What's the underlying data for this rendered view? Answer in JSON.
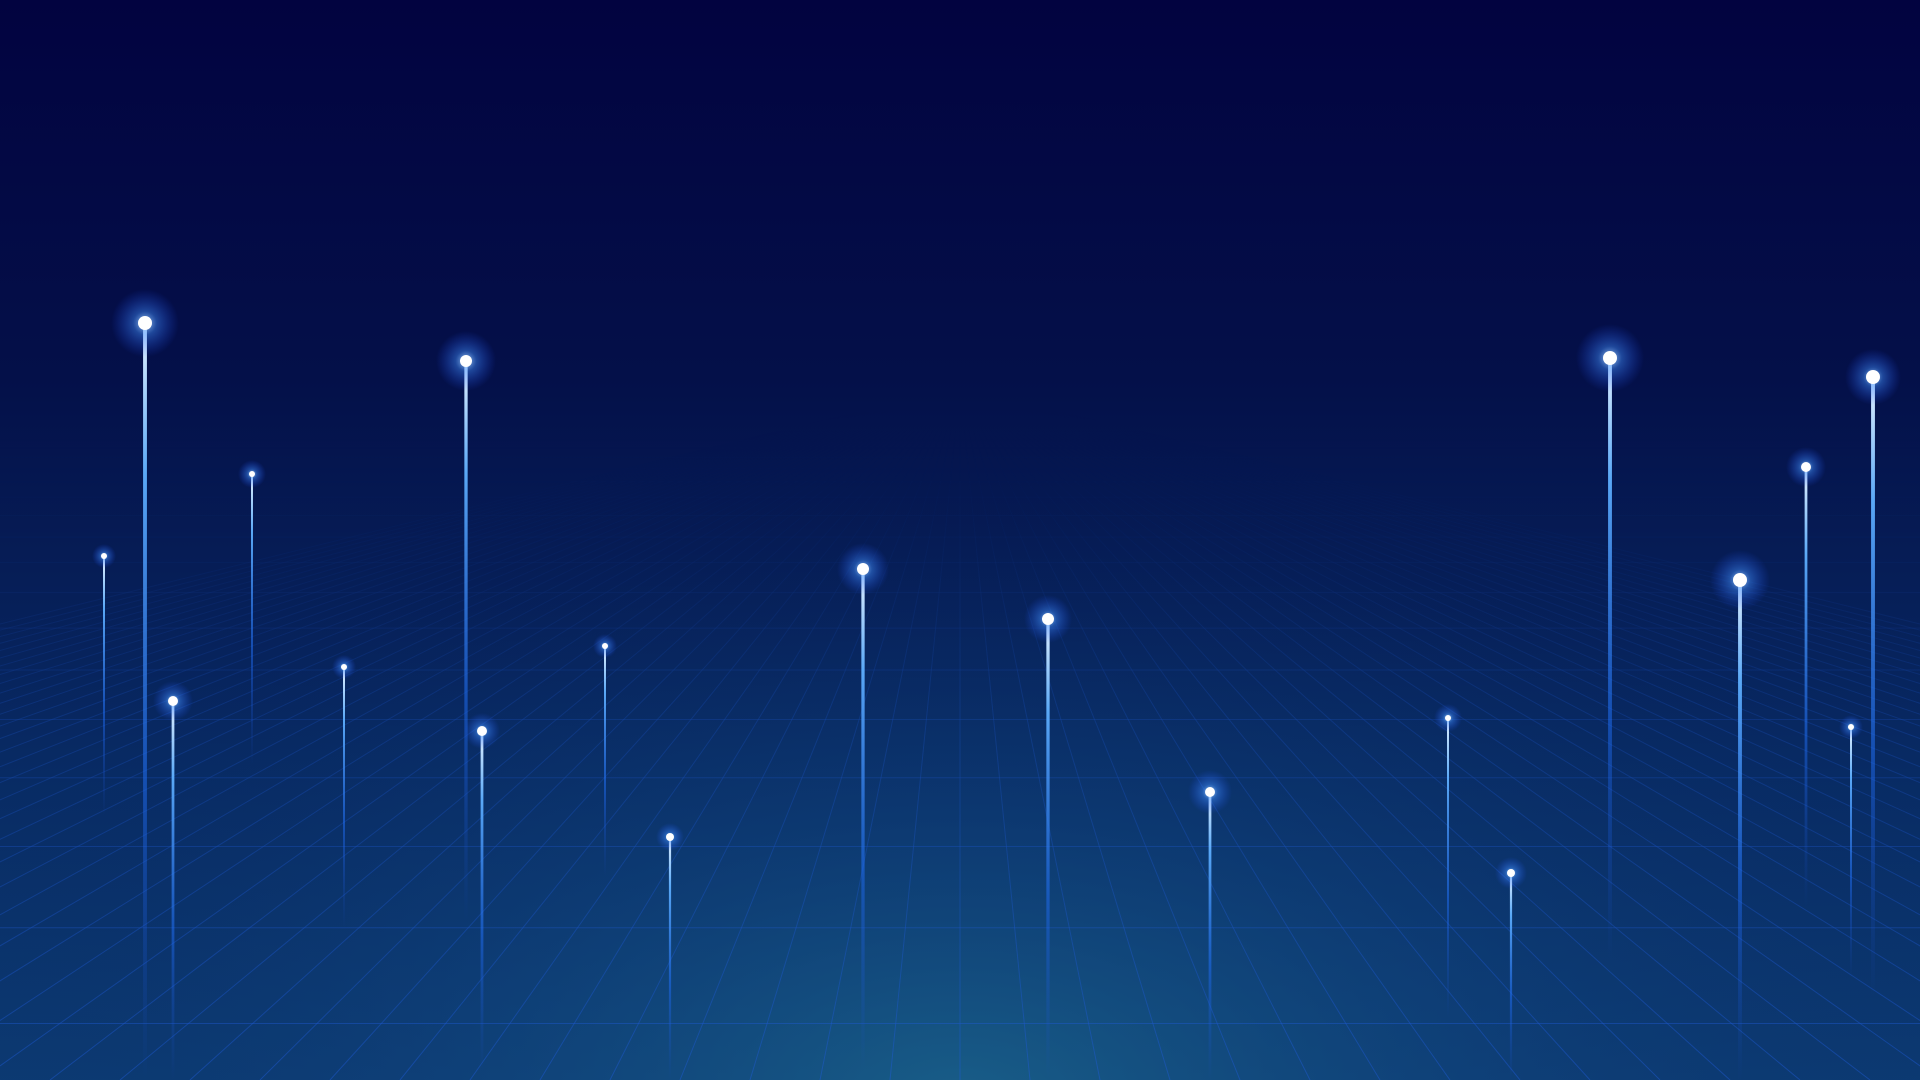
{
  "colors": {
    "sky_top": "#020340",
    "sky_mid": "#051650",
    "sky_bottom": "#0b3a72",
    "horizon_glow": "#1a5f8c",
    "grid_line": "#1e5bd6",
    "beam_core": "#ffffff",
    "beam_glow": "#3f8cff",
    "beam_trail": "#1f6df2"
  },
  "scene": {
    "icon": "light-beams-grid-background"
  }
}
